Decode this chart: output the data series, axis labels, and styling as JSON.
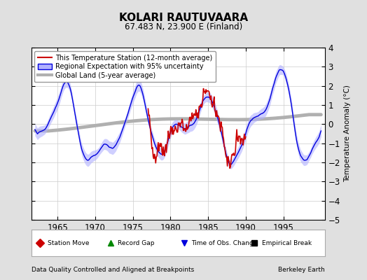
{
  "title": "KOLARI RAUTUVAARA",
  "subtitle": "67.483 N, 23.900 E (Finland)",
  "xlabel_left": "Data Quality Controlled and Aligned at Breakpoints",
  "xlabel_right": "Berkeley Earth",
  "ylabel": "Temperature Anomaly (°C)",
  "xlim": [
    1961.5,
    2000.5
  ],
  "ylim": [
    -5,
    4
  ],
  "yticks": [
    -5,
    -4,
    -3,
    -2,
    -1,
    0,
    1,
    2,
    3,
    4
  ],
  "xticks": [
    1965,
    1970,
    1975,
    1980,
    1985,
    1990,
    1995
  ],
  "background_color": "#e0e0e0",
  "plot_bg_color": "#ffffff",
  "grid_color": "#cccccc",
  "station_color": "#cc0000",
  "regional_color": "#0000dd",
  "regional_fill_color": "#b0b0ff",
  "global_color": "#b0b0b0",
  "legend_items": [
    {
      "label": "This Temperature Station (12-month average)",
      "color": "#cc0000",
      "lw": 1.5
    },
    {
      "label": "Regional Expectation with 95% uncertainty",
      "color": "#0000dd",
      "lw": 1.5
    },
    {
      "label": "Global Land (5-year average)",
      "color": "#b0b0b0",
      "lw": 3
    }
  ],
  "marker_items": [
    {
      "label": "Station Move",
      "color": "#cc0000",
      "marker": "D"
    },
    {
      "label": "Record Gap",
      "color": "#008800",
      "marker": "^"
    },
    {
      "label": "Time of Obs. Change",
      "color": "#0000dd",
      "marker": "v"
    },
    {
      "label": "Empirical Break",
      "color": "#000000",
      "marker": "s"
    }
  ]
}
